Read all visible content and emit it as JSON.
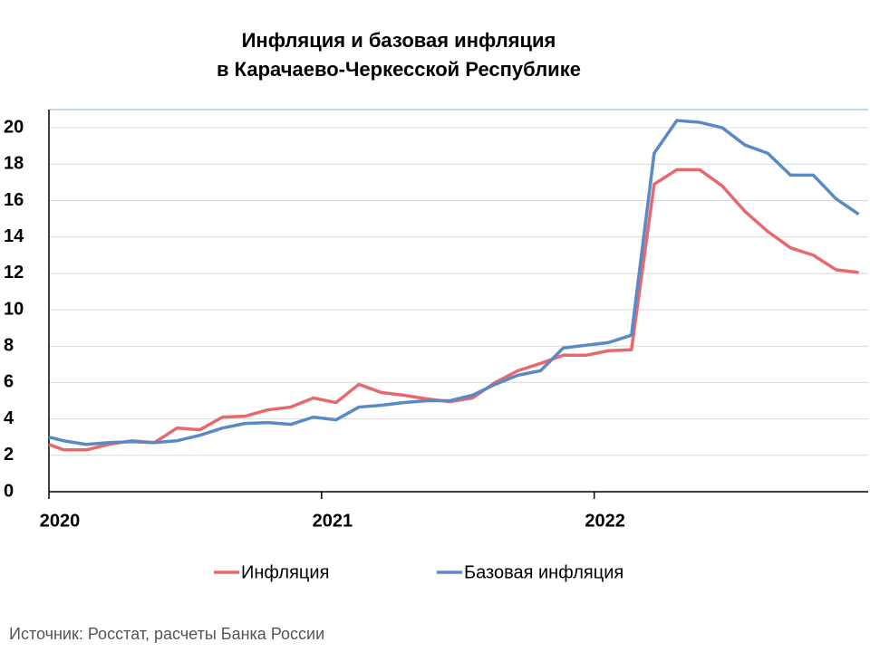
{
  "chart_data": {
    "type": "line",
    "title": [
      "Инфляция и базовая инфляция",
      "в Карачаево-Черкесской Республике"
    ],
    "source": "Источник: Росстат, расчеты Банка России",
    "x": [
      0,
      0.64,
      1.64,
      2.64,
      3.64,
      4.64,
      5.64,
      6.64,
      7.64,
      8.64,
      9.64,
      10.64,
      11.64,
      12.64,
      13.64,
      14.64,
      15.64,
      16.64,
      17.64,
      18.64,
      19.64,
      20.64,
      21.64,
      22.64,
      23.64,
      24.64,
      25.64,
      26.64,
      27.64,
      28.64,
      29.64,
      30.64,
      31.64,
      32.64,
      33.64,
      34.64,
      35.64
    ],
    "series": [
      {
        "name": "Инфляция",
        "color": "#e8696d",
        "values": [
          2.6,
          2.3,
          2.3,
          2.6,
          2.8,
          2.7,
          3.5,
          3.4,
          4.1,
          4.15,
          4.5,
          4.65,
          5.15,
          4.9,
          5.9,
          5.45,
          5.3,
          5.1,
          4.95,
          5.15,
          6.0,
          6.65,
          7.05,
          7.5,
          7.5,
          7.75,
          7.8,
          16.9,
          17.7,
          17.7,
          16.8,
          15.4,
          14.3,
          13.4,
          13.0,
          12.2,
          12.05
        ]
      },
      {
        "name": "Базовая инфляция",
        "color": "#5a8ac6",
        "values": [
          3.0,
          2.8,
          2.6,
          2.7,
          2.75,
          2.7,
          2.8,
          3.1,
          3.5,
          3.75,
          3.8,
          3.7,
          4.1,
          3.95,
          4.65,
          4.75,
          4.9,
          5.0,
          5.0,
          5.3,
          5.9,
          6.4,
          6.65,
          7.9,
          8.05,
          8.2,
          8.6,
          18.6,
          20.4,
          20.3,
          20.0,
          19.05,
          18.6,
          17.4,
          17.4,
          16.1,
          15.25
        ]
      }
    ],
    "xlim": [
      0,
      36.06
    ],
    "xticks": [
      {
        "value": 0,
        "label": "2020"
      },
      {
        "value": 12,
        "label": "2021"
      },
      {
        "value": 24,
        "label": "2022"
      }
    ],
    "ylim": [
      0,
      21
    ],
    "yticks": [
      0,
      2,
      4,
      6,
      8,
      10,
      12,
      14,
      16,
      18,
      20
    ],
    "grid": true,
    "legend": "bottom"
  }
}
